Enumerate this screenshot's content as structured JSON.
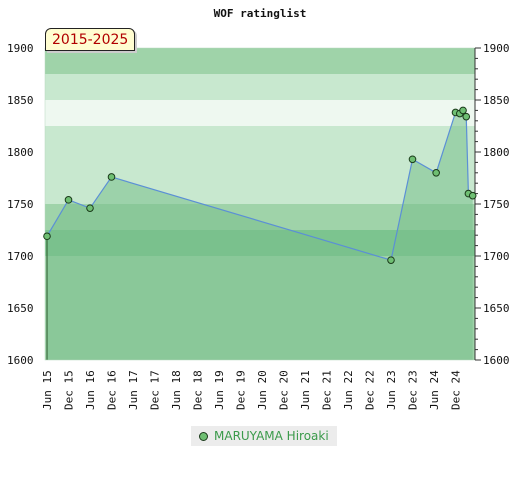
{
  "chart_data": {
    "type": "area",
    "title": "WOF ratinglist",
    "badge": "2015-2025",
    "ylim": [
      1600,
      1900
    ],
    "yticks": [
      1600,
      1650,
      1700,
      1750,
      1800,
      1850,
      1900
    ],
    "xlabels": [
      "Jun 15",
      "Dec 15",
      "Jun 16",
      "Dec 16",
      "Jun 17",
      "Dec 17",
      "Jun 18",
      "Dec 18",
      "Jun 19",
      "Dec 19",
      "Jun 20",
      "Dec 20",
      "Jun 21",
      "Dec 21",
      "Jun 22",
      "Dec 22",
      "Jun 23",
      "Dec 23",
      "Jun 24",
      "Dec 24"
    ],
    "series": [
      {
        "name": "MARUYAMA Hiroaki",
        "color": "#6fbf73",
        "points": [
          {
            "x": 0.0,
            "y": 1719
          },
          {
            "x": 1.0,
            "y": 1754
          },
          {
            "x": 2.0,
            "y": 1746
          },
          {
            "x": 3.0,
            "y": 1776
          },
          {
            "x": 16.0,
            "y": 1696
          },
          {
            "x": 17.0,
            "y": 1793
          },
          {
            "x": 18.1,
            "y": 1780
          },
          {
            "x": 19.0,
            "y": 1838
          },
          {
            "x": 19.2,
            "y": 1837
          },
          {
            "x": 19.35,
            "y": 1840
          },
          {
            "x": 19.5,
            "y": 1834
          },
          {
            "x": 19.6,
            "y": 1760
          },
          {
            "x": 19.8,
            "y": 1758
          }
        ]
      }
    ],
    "legend_position": "bottom-center",
    "grid": true
  },
  "colors": {
    "band_dark": "#7cc48f",
    "band_mid": "#9fd3a9",
    "band_light": "#c8e8cf",
    "band_pale": "#eef8f0",
    "line": "#5b8fd6",
    "fill": "#79c08c"
  }
}
